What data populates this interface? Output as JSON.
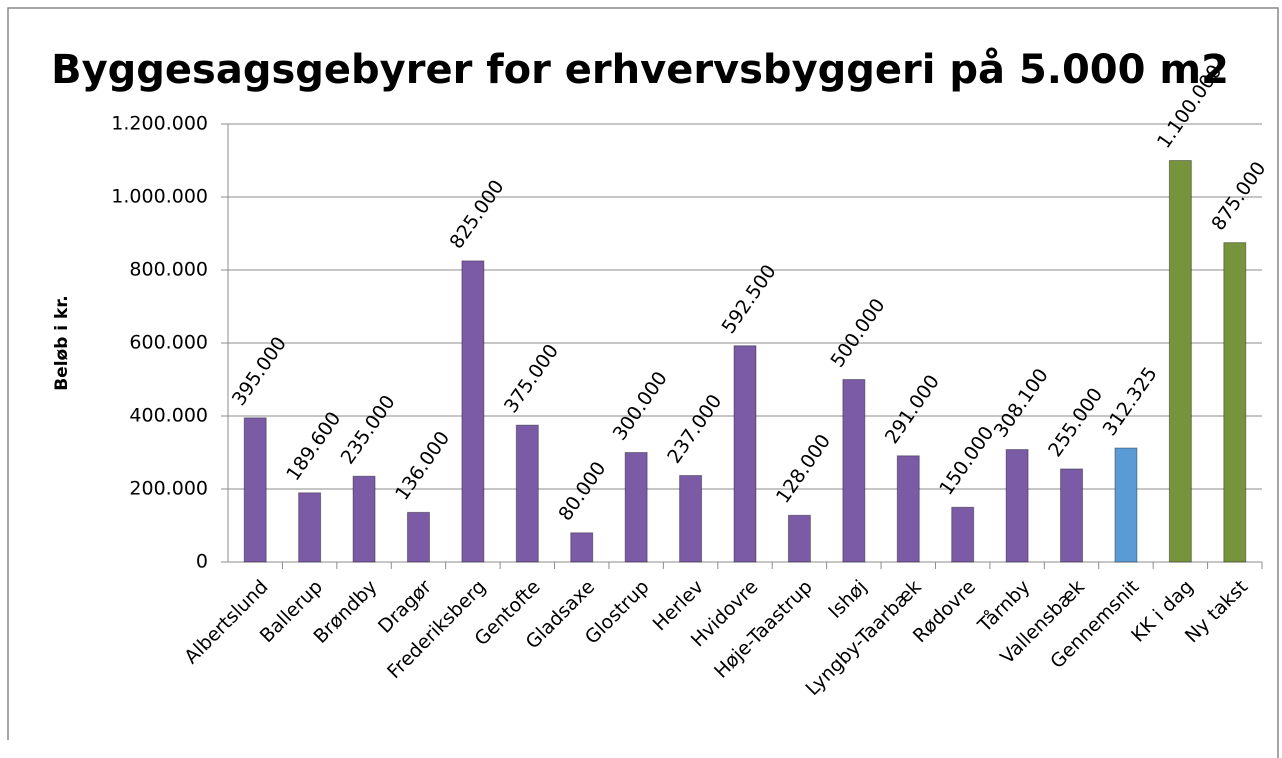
{
  "chart_data": {
    "type": "bar",
    "title": "Byggesagsgebyrer for erhvervsbyggeri på 5.000 m2",
    "y_label": "Beløb i kr.",
    "categories": [
      "Albertslund",
      "Ballerup",
      "Brøndby",
      "Dragør",
      "Frederiksberg",
      "Gentofte",
      "Gladsaxe",
      "Glostrup",
      "Herlev",
      "Hvidovre",
      "Høje-Taastrup",
      "Ishøj",
      "Lyngby-Taarbæk",
      "Rødovre",
      "Tårnby",
      "Vallensbæk",
      "Gennemsnit",
      "KK i dag",
      "Ny takst"
    ],
    "values": [
      395000,
      189600,
      235000,
      136000,
      825000,
      375000,
      80000,
      300000,
      237000,
      592500,
      128000,
      500000,
      291000,
      150000,
      308100,
      255000,
      312325,
      1100000,
      875000
    ],
    "value_labels": [
      "395.000",
      "189.600",
      "235.000",
      "136.000",
      "825.000",
      "375.000",
      "80.000",
      "300.000",
      "237.000",
      "592.500",
      "128.000",
      "500.000",
      "291.000",
      "150.000",
      "308.100",
      "255.000",
      "312.325",
      "1.100.000",
      "875.000"
    ],
    "colors": [
      "#7b5ba6",
      "#7b5ba6",
      "#7b5ba6",
      "#7b5ba6",
      "#7b5ba6",
      "#7b5ba6",
      "#7b5ba6",
      "#7b5ba6",
      "#7b5ba6",
      "#7b5ba6",
      "#7b5ba6",
      "#7b5ba6",
      "#7b5ba6",
      "#7b5ba6",
      "#7b5ba6",
      "#7b5ba6",
      "#5b9bd5",
      "#77933c",
      "#77933c"
    ],
    "ylim": [
      0,
      1200000
    ],
    "yticks": [
      0,
      {
        "value": 200000,
        "label": "200.000"
      },
      {
        "value": 400000,
        "label": "400.000"
      },
      {
        "value": 600000,
        "label": "600.000"
      },
      {
        "value": 800000,
        "label": "800.000"
      },
      {
        "value": 1000000,
        "label": "1.000.000"
      },
      {
        "value": 1200000,
        "label": "1.200.000"
      }
    ],
    "grid": true
  }
}
